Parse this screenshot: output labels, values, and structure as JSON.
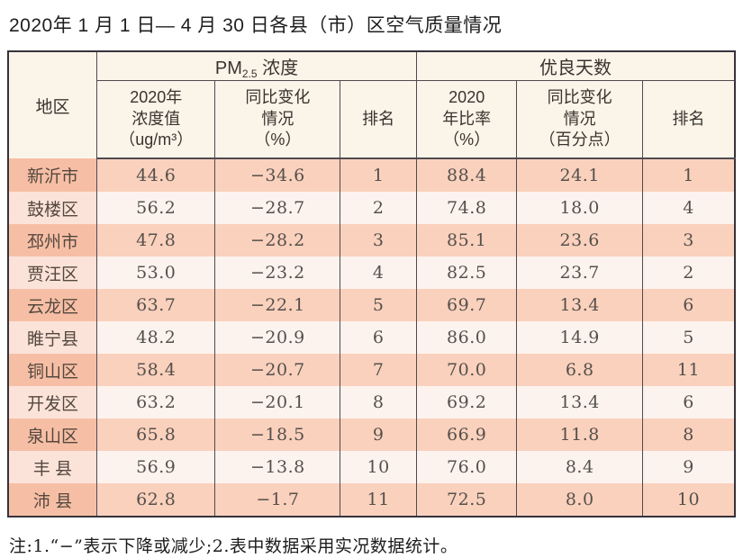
{
  "page": {
    "title": "2020年 1 月 1 日— 4 月 30 日各县（市）区空气质量情况",
    "note": "注:1.“−”表示下降或减少;2.表中数据采用实况数据统计。"
  },
  "table": {
    "corner_header": "地区",
    "group_pm": {
      "prefix": "PM",
      "sub": "2.5",
      "suffix": " 浓度"
    },
    "group_good": "优良天数",
    "subheaders": {
      "pm_value": "2020年\n浓度值\n（ug/m³）",
      "pm_change": "同比变化\n情况\n（%）",
      "pm_rank": "排名",
      "good_rate": "2020\n年比率\n（%）",
      "good_change": "同比变化\n情况\n（百分点）",
      "good_rank": "排名"
    },
    "rows": [
      {
        "region": "新沂市",
        "pm_value": "44.6",
        "pm_change": "−34.6",
        "pm_rank": "1",
        "good_rate": "88.4",
        "good_change": "24.1",
        "good_rank": "1"
      },
      {
        "region": "鼓楼区",
        "pm_value": "56.2",
        "pm_change": "−28.7",
        "pm_rank": "2",
        "good_rate": "74.8",
        "good_change": "18.0",
        "good_rank": "4"
      },
      {
        "region": "邳州市",
        "pm_value": "47.8",
        "pm_change": "−28.2",
        "pm_rank": "3",
        "good_rate": "85.1",
        "good_change": "23.6",
        "good_rank": "3"
      },
      {
        "region": "贾汪区",
        "pm_value": "53.0",
        "pm_change": "−23.2",
        "pm_rank": "4",
        "good_rate": "82.5",
        "good_change": "23.7",
        "good_rank": "2"
      },
      {
        "region": "云龙区",
        "pm_value": "63.7",
        "pm_change": "−22.1",
        "pm_rank": "5",
        "good_rate": "69.7",
        "good_change": "13.4",
        "good_rank": "6"
      },
      {
        "region": "睢宁县",
        "pm_value": "48.2",
        "pm_change": "−20.9",
        "pm_rank": "6",
        "good_rate": "86.0",
        "good_change": "14.9",
        "good_rank": "5"
      },
      {
        "region": "铜山区",
        "pm_value": "58.4",
        "pm_change": "−20.7",
        "pm_rank": "7",
        "good_rate": "70.0",
        "good_change": "6.8",
        "good_rank": "11"
      },
      {
        "region": "开发区",
        "pm_value": "63.2",
        "pm_change": "−20.1",
        "pm_rank": "8",
        "good_rate": "69.2",
        "good_change": "13.4",
        "good_rank": "6"
      },
      {
        "region": "泉山区",
        "pm_value": "65.8",
        "pm_change": "−18.5",
        "pm_rank": "9",
        "good_rate": "66.9",
        "good_change": "11.8",
        "good_rank": "8"
      },
      {
        "region": "丰 县",
        "pm_value": "56.9",
        "pm_change": "−13.8",
        "pm_rank": "10",
        "good_rate": "76.0",
        "good_change": "8.4",
        "good_rank": "9"
      },
      {
        "region": "沛 县",
        "pm_value": "62.8",
        "pm_change": "−1.7",
        "pm_rank": "11",
        "good_rate": "72.5",
        "good_change": "8.0",
        "good_rank": "10"
      }
    ]
  },
  "colors": {
    "header_bg": "#fbf4e9",
    "row_odd_region_bg": "#f6bfa5",
    "row_odd_bg": "#fad1bd",
    "row_even_region_bg": "#fbe3d9",
    "row_even_bg": "#fdf3ee",
    "outer_border": "#37323b",
    "inner_border": "#4f4a50",
    "text": "#4c4743"
  }
}
